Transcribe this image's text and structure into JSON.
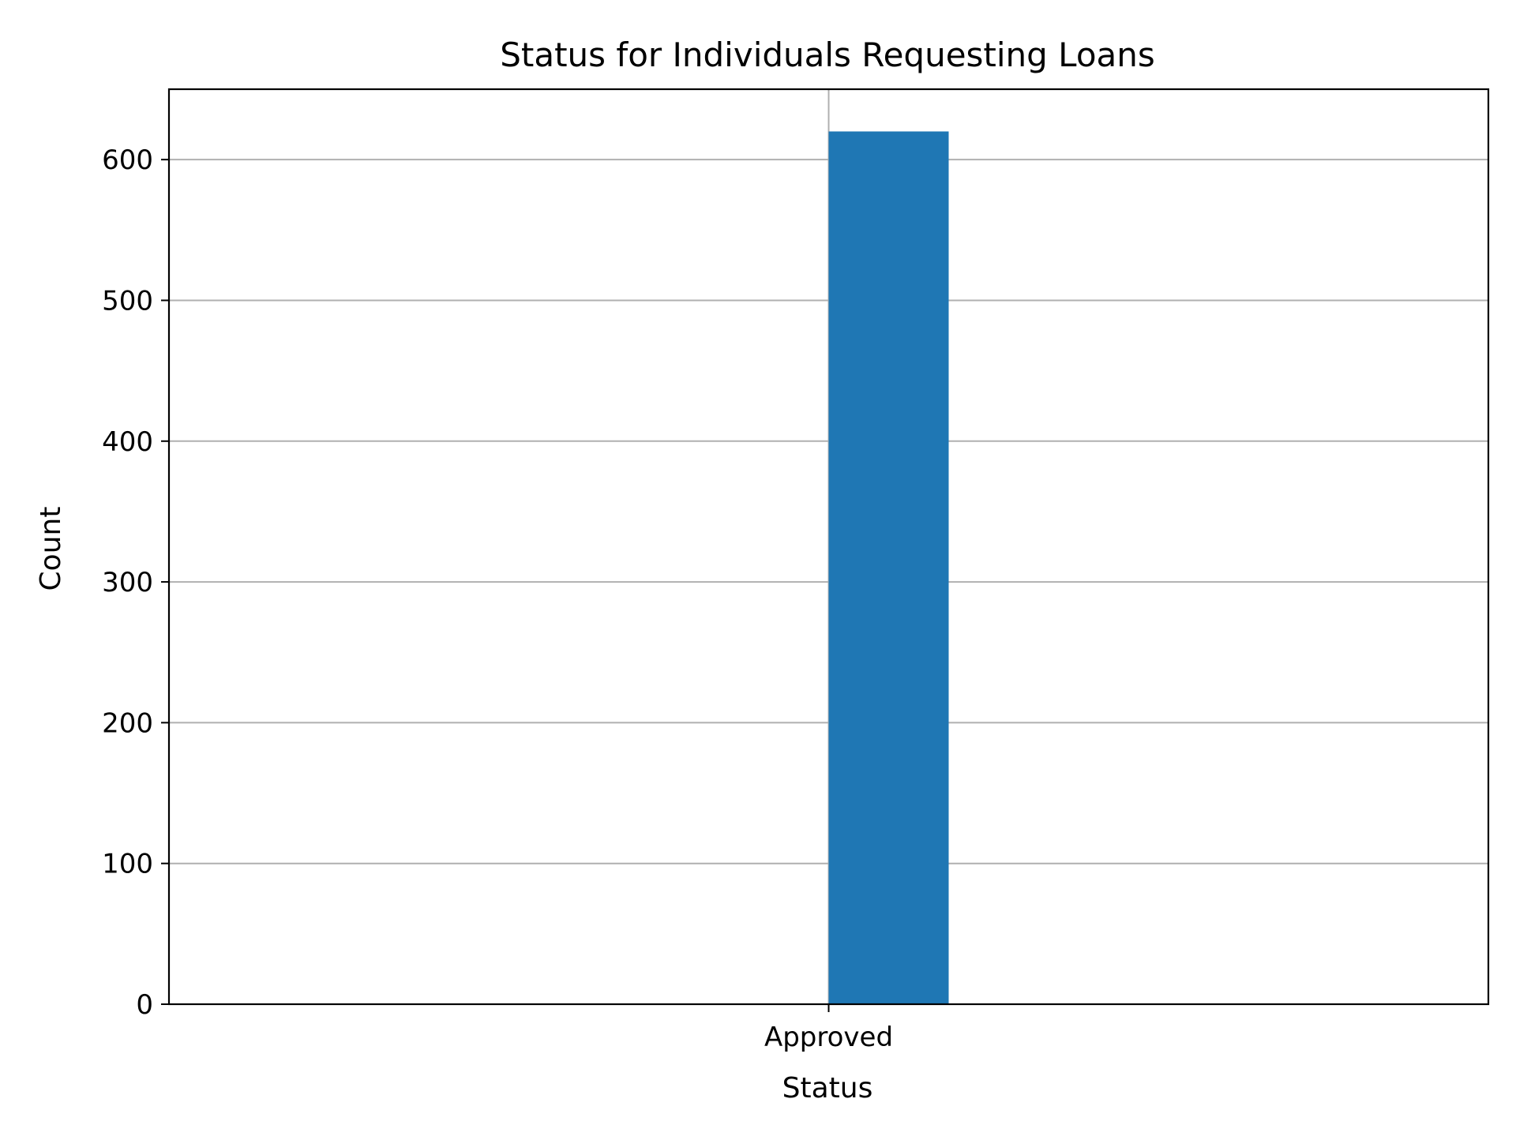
{
  "chart_data": {
    "type": "bar",
    "title": "Status for Individuals Requesting Loans",
    "xlabel": "Status",
    "ylabel": "Count",
    "categories": [
      "Approved"
    ],
    "values": [
      620
    ],
    "ylim": [
      0,
      650
    ],
    "yticks": [
      0,
      100,
      200,
      300,
      400,
      500,
      600
    ],
    "yticklabels": [
      "0",
      "100",
      "200",
      "300",
      "400",
      "500",
      "600"
    ],
    "xticklabels": [
      "Approved"
    ],
    "grid": true,
    "legend": "none",
    "colors": {
      "bar": "#1f77b4",
      "grid": "#b0b0b0",
      "axes": "#000000"
    }
  }
}
